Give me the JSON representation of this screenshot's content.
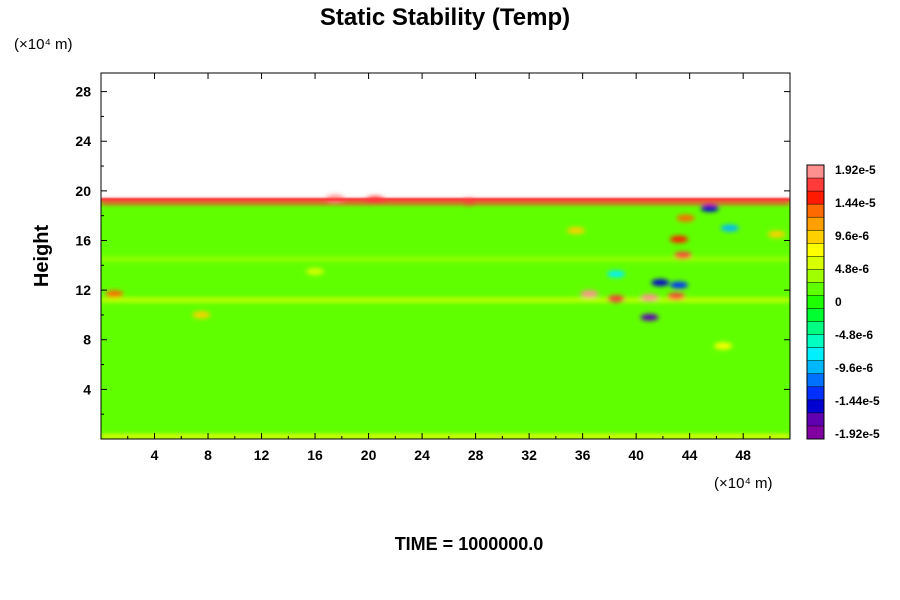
{
  "chart_data": {
    "type": "heatmap",
    "title": "Static Stability (Temp)",
    "xlabel": "",
    "ylabel": "Height",
    "x_unit": "(×10⁴ m)",
    "y_unit": "(×10⁴ m)",
    "xlim": [
      0,
      51.5
    ],
    "ylim": [
      0,
      29.5
    ],
    "x_ticks": [
      4,
      8,
      12,
      16,
      20,
      24,
      28,
      32,
      36,
      40,
      44,
      48
    ],
    "x_tick_labels": [
      "4",
      "8",
      "12",
      "16",
      "20",
      "24",
      "28",
      "32",
      "36",
      "40",
      "44",
      "48"
    ],
    "y_ticks": [
      4,
      8,
      12,
      16,
      20,
      24,
      28
    ],
    "y_tick_labels": [
      "4",
      "8",
      "12",
      "16",
      "20",
      "24",
      "28"
    ],
    "field_top_height": 19.3,
    "colorbar": {
      "min": -1.92e-05,
      "max": 1.92e-05,
      "tick_values": [
        1.92e-05,
        1.44e-05,
        9.6e-06,
        4.8e-06,
        0,
        -4.8e-06,
        -9.6e-06,
        -1.44e-05,
        -1.92e-05
      ],
      "tick_labels": [
        "1.92e-5",
        "1.44e-5",
        "9.6e-6",
        "4.8e-6",
        "0",
        "-4.8e-6",
        "-9.6e-6",
        "-1.44e-5",
        "-1.92e-5"
      ],
      "colors": [
        "#ff9090",
        "#ff3a3a",
        "#ff1a00",
        "#ff6a00",
        "#ffa000",
        "#ffd000",
        "#ffff00",
        "#d8ff00",
        "#a0ff00",
        "#60ff00",
        "#20ff00",
        "#00ff30",
        "#00ff80",
        "#00ffc0",
        "#00f0ff",
        "#00b8ff",
        "#0070ff",
        "#0030ff",
        "#0000d0",
        "#6000b0",
        "#8000a0"
      ]
    },
    "features": [
      {
        "type": "band",
        "x": [
          0,
          51.5
        ],
        "y": 19.1,
        "value": 1.6e-05
      },
      {
        "type": "band",
        "x": [
          0,
          51.5
        ],
        "y": 0.2,
        "value": 8e-06
      },
      {
        "type": "band",
        "x": [
          0,
          51.5
        ],
        "y": 11.2,
        "value": 6e-06
      },
      {
        "type": "band",
        "x": [
          0,
          51.5
        ],
        "y": 14.5,
        "value": 4e-06
      },
      {
        "type": "blob",
        "x": 17.5,
        "y": 19.4,
        "value": 1.8e-05
      },
      {
        "type": "blob",
        "x": 20.5,
        "y": 19.3,
        "value": 1.7e-05
      },
      {
        "type": "blob",
        "x": 27.5,
        "y": 19.1,
        "value": 1.7e-05
      },
      {
        "type": "blob",
        "x": 1.0,
        "y": 11.7,
        "value": 1.2e-05
      },
      {
        "type": "blob",
        "x": 7.5,
        "y": 10.0,
        "value": 1e-05
      },
      {
        "type": "blob",
        "x": 36.5,
        "y": 11.7,
        "value": 1.9e-05
      },
      {
        "type": "blob",
        "x": 38.5,
        "y": 11.3,
        "value": 1.7e-05
      },
      {
        "type": "blob",
        "x": 41.0,
        "y": 11.4,
        "value": 1.8e-05
      },
      {
        "type": "blob",
        "x": 43.0,
        "y": 11.5,
        "value": 1.6e-05
      },
      {
        "type": "blob",
        "x": 41.8,
        "y": 12.6,
        "value": -1.5e-05
      },
      {
        "type": "blob",
        "x": 43.2,
        "y": 12.4,
        "value": -1.3e-05
      },
      {
        "type": "blob",
        "x": 41.0,
        "y": 9.8,
        "value": -1.6e-05
      },
      {
        "type": "blob",
        "x": 38.5,
        "y": 13.3,
        "value": -8e-06
      },
      {
        "type": "blob",
        "x": 43.5,
        "y": 14.8,
        "value": 1.7e-05
      },
      {
        "type": "blob",
        "x": 43.2,
        "y": 16.1,
        "value": 1.5e-05
      },
      {
        "type": "blob",
        "x": 43.7,
        "y": 17.8,
        "value": 1.3e-05
      },
      {
        "type": "blob",
        "x": 45.5,
        "y": 18.6,
        "value": -1.4e-05
      },
      {
        "type": "blob",
        "x": 47.0,
        "y": 17.0,
        "value": -9e-06
      },
      {
        "type": "blob",
        "x": 35.5,
        "y": 16.8,
        "value": 9e-06
      },
      {
        "type": "blob",
        "x": 50.5,
        "y": 16.5,
        "value": 9e-06
      },
      {
        "type": "blob",
        "x": 46.5,
        "y": 7.5,
        "value": 7e-06
      },
      {
        "type": "blob",
        "x": 16.0,
        "y": 13.5,
        "value": 6e-06
      }
    ]
  },
  "footer": {
    "time_label": "TIME = 1000000.0"
  }
}
